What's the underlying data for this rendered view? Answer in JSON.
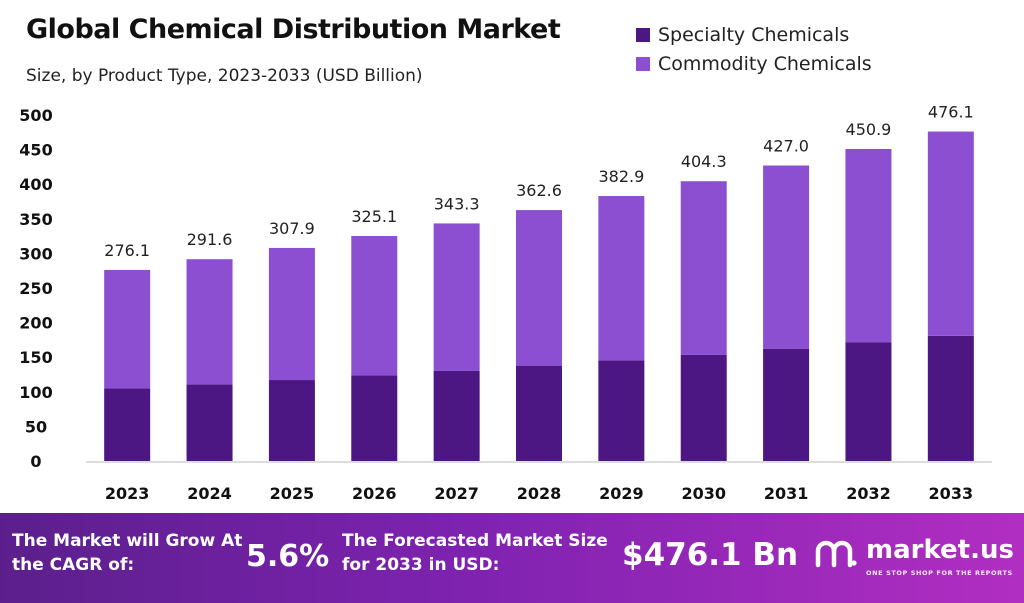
{
  "header": {
    "title": "Global Chemical Distribution Market",
    "subtitle": "Size, by Product Type, 2023-2033 (USD Billion)"
  },
  "legend": [
    {
      "label": "Specialty Chemicals",
      "color": "#4c1683"
    },
    {
      "label": "Commodity Chemicals",
      "color": "#8c4fd1"
    }
  ],
  "chart_data": {
    "type": "bar",
    "stacked": true,
    "categories": [
      "2023",
      "2024",
      "2025",
      "2026",
      "2027",
      "2028",
      "2029",
      "2030",
      "2031",
      "2032",
      "2033"
    ],
    "series": [
      {
        "name": "Specialty Chemicals",
        "color": "#4c1683",
        "values": [
          104.9,
          110.8,
          117.0,
          123.5,
          130.5,
          137.8,
          145.5,
          153.6,
          162.3,
          171.3,
          180.9
        ]
      },
      {
        "name": "Commodity Chemicals",
        "color": "#8c4fd1",
        "values": [
          171.2,
          180.8,
          190.9,
          201.6,
          212.8,
          224.8,
          237.4,
          250.7,
          264.7,
          279.6,
          295.2
        ]
      }
    ],
    "totals": [
      "276.1",
      "291.6",
      "307.9",
      "325.1",
      "343.3",
      "362.6",
      "382.9",
      "404.3",
      "427.0",
      "450.9",
      "476.1"
    ],
    "y_ticks": [
      0,
      50,
      100,
      150,
      200,
      250,
      300,
      350,
      400,
      450,
      500
    ],
    "ylim": [
      0,
      500
    ],
    "grid": false,
    "legend_position": "top-right"
  },
  "footer": {
    "cagr_label": "The Market will Grow At the CAGR of:",
    "cagr_value": "5.6%",
    "forecast_label": "The Forecasted Market Size for 2033 in USD:",
    "forecast_value": "$476.1 Bn",
    "brand_name": "market.us",
    "brand_tagline": "ONE STOP SHOP FOR THE REPORTS"
  }
}
